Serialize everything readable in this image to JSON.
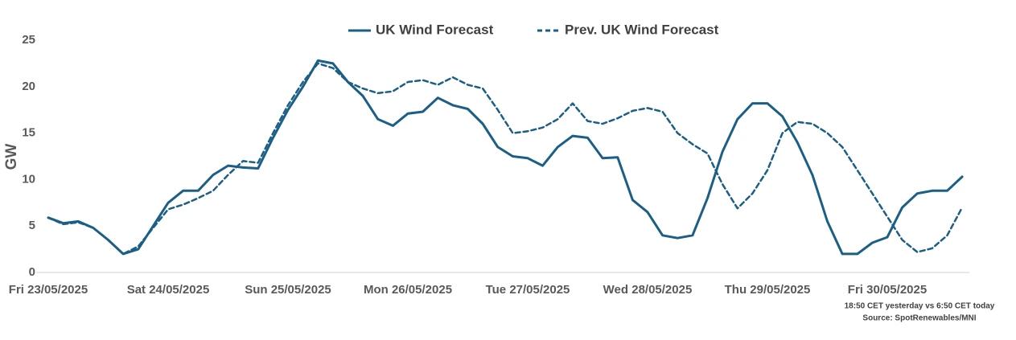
{
  "chart_data": {
    "type": "line",
    "y_label": "GW",
    "notes": [
      "18:50 CET yesterday vs  6:50 CET today",
      "Source: SpotRenewables/MNI"
    ],
    "categories": [
      "Fri 23/05/2025",
      null,
      null,
      null,
      null,
      null,
      null,
      null,
      "Sat 24/05/2025",
      null,
      null,
      null,
      null,
      null,
      null,
      null,
      "Sun 25/05/2025",
      null,
      null,
      null,
      null,
      null,
      null,
      null,
      "Mon 26/05/2025",
      null,
      null,
      null,
      null,
      null,
      null,
      null,
      "Tue 27/05/2025",
      null,
      null,
      null,
      null,
      null,
      null,
      null,
      "Wed 28/05/2025",
      null,
      null,
      null,
      null,
      null,
      null,
      null,
      "Thu 29/05/2025",
      null,
      null,
      null,
      null,
      null,
      null,
      null,
      "Fri 30/05/2025",
      null,
      null,
      null,
      null,
      null
    ],
    "series": [
      {
        "name": "UK Wind Forecast",
        "color": "#1b5f87",
        "dash": false,
        "values": [
          5.9,
          5.3,
          5.5,
          4.8,
          3.5,
          2.0,
          2.5,
          5.0,
          7.5,
          8.8,
          8.8,
          10.5,
          11.5,
          11.3,
          11.2,
          14.5,
          17.5,
          20.0,
          22.8,
          22.5,
          20.5,
          19.0,
          16.5,
          15.8,
          17.1,
          17.3,
          18.8,
          18.0,
          17.6,
          16.0,
          13.5,
          12.5,
          12.3,
          11.5,
          13.5,
          14.7,
          14.5,
          12.3,
          12.4,
          7.8,
          6.5,
          4.0,
          3.7,
          4.0,
          8.0,
          13.0,
          16.5,
          18.2,
          18.2,
          16.8,
          14.0,
          10.5,
          5.5,
          2.0,
          2.0,
          3.2,
          3.8,
          7.0,
          8.5,
          8.8,
          8.8,
          10.3
        ]
      },
      {
        "name": "Prev. UK Wind Forecast",
        "color": "#1b5f87",
        "dash": true,
        "values": [
          5.9,
          5.2,
          5.4,
          4.8,
          3.5,
          2.0,
          2.8,
          4.8,
          6.8,
          7.3,
          8.0,
          8.8,
          10.5,
          12.0,
          11.8,
          15.0,
          18.0,
          20.5,
          22.5,
          22.0,
          20.5,
          19.8,
          19.3,
          19.5,
          20.5,
          20.7,
          20.2,
          21.0,
          20.2,
          19.8,
          17.5,
          15.0,
          15.2,
          15.6,
          16.5,
          18.2,
          16.3,
          16.0,
          16.6,
          17.4,
          17.7,
          17.3,
          15.0,
          13.8,
          12.8,
          9.5,
          6.9,
          8.5,
          11.0,
          15.0,
          16.2,
          16.0,
          15.0,
          13.5,
          11.0,
          8.5,
          6.0,
          3.5,
          2.2,
          2.6,
          4.0,
          7.0
        ]
      }
    ],
    "ylim": [
      0,
      25
    ],
    "yticks": [
      0,
      5,
      10,
      15,
      20,
      25
    ],
    "grid": false,
    "legend": "top"
  }
}
